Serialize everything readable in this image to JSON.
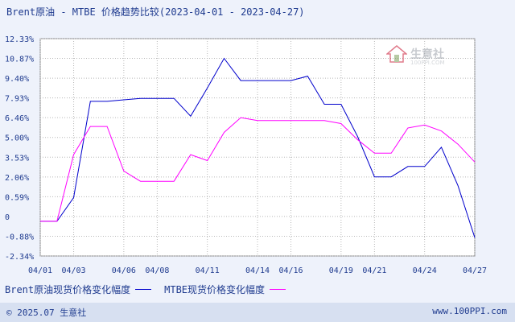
{
  "chart_data": {
    "type": "line",
    "title": "Brent原油 - MTBE 价格趋势比较(2023-04-01 - 2023-04-27)",
    "yticks": [
      "12.33%",
      "10.87%",
      "9.40%",
      "7.93%",
      "6.46%",
      "5.00%",
      "3.53%",
      "2.06%",
      "0.59%",
      "0",
      "-0.88%",
      "-2.34%"
    ],
    "ylim": [
      -2.34,
      12.33
    ],
    "xlim": [
      "04/01",
      "04/27"
    ],
    "xticks": [
      "04/01",
      "04/03",
      "04/06",
      "04/08",
      "04/11",
      "04/14",
      "04/16",
      "04/19",
      "04/21",
      "04/24",
      "04/27"
    ],
    "grid": true,
    "series": [
      {
        "name": "Brent原油现货价格变化幅度",
        "color": "#0000cc",
        "points": [
          [
            "04/01",
            0
          ],
          [
            "04/02",
            0
          ],
          [
            "04/03",
            1.6
          ],
          [
            "04/04",
            8.1
          ],
          [
            "04/05",
            8.1
          ],
          [
            "04/06",
            8.2
          ],
          [
            "04/07",
            8.3
          ],
          [
            "04/08",
            8.3
          ],
          [
            "04/09",
            8.3
          ],
          [
            "04/10",
            7.1
          ],
          [
            "04/11",
            9.0
          ],
          [
            "04/12",
            11.0
          ],
          [
            "04/13",
            9.5
          ],
          [
            "04/14",
            9.5
          ],
          [
            "04/15",
            9.5
          ],
          [
            "04/16",
            9.5
          ],
          [
            "04/17",
            9.8
          ],
          [
            "04/18",
            7.9
          ],
          [
            "04/19",
            7.9
          ],
          [
            "04/20",
            5.7
          ],
          [
            "04/21",
            3.0
          ],
          [
            "04/22",
            3.0
          ],
          [
            "04/23",
            3.7
          ],
          [
            "04/24",
            3.7
          ],
          [
            "04/25",
            5.0
          ],
          [
            "04/26",
            2.4
          ],
          [
            "04/27",
            -1.1
          ]
        ]
      },
      {
        "name": "MTBE现货价格变化幅度",
        "color": "#ff00ff",
        "points": [
          [
            "04/01",
            0
          ],
          [
            "04/02",
            0
          ],
          [
            "04/03",
            4.5
          ],
          [
            "04/04",
            6.4
          ],
          [
            "04/05",
            6.4
          ],
          [
            "04/06",
            3.4
          ],
          [
            "04/07",
            2.7
          ],
          [
            "04/08",
            2.7
          ],
          [
            "04/09",
            2.7
          ],
          [
            "04/10",
            4.5
          ],
          [
            "04/11",
            4.1
          ],
          [
            "04/12",
            6.0
          ],
          [
            "04/13",
            7.0
          ],
          [
            "04/14",
            6.8
          ],
          [
            "04/15",
            6.8
          ],
          [
            "04/16",
            6.8
          ],
          [
            "04/17",
            6.8
          ],
          [
            "04/18",
            6.8
          ],
          [
            "04/19",
            6.6
          ],
          [
            "04/20",
            5.5
          ],
          [
            "04/21",
            4.6
          ],
          [
            "04/22",
            4.6
          ],
          [
            "04/23",
            6.3
          ],
          [
            "04/24",
            6.5
          ],
          [
            "04/25",
            6.1
          ],
          [
            "04/26",
            5.2
          ],
          [
            "04/27",
            4.0
          ]
        ]
      }
    ]
  },
  "legend": {
    "series1_label": "Brent原油现货价格变化幅度",
    "series2_label": "MTBE现货价格变化幅度"
  },
  "watermark": {
    "text": "生意社",
    "sub": "100PPI.COM"
  },
  "footer": {
    "copyright": "© 2025.07 生意社",
    "url": "www.100PPI.com"
  }
}
